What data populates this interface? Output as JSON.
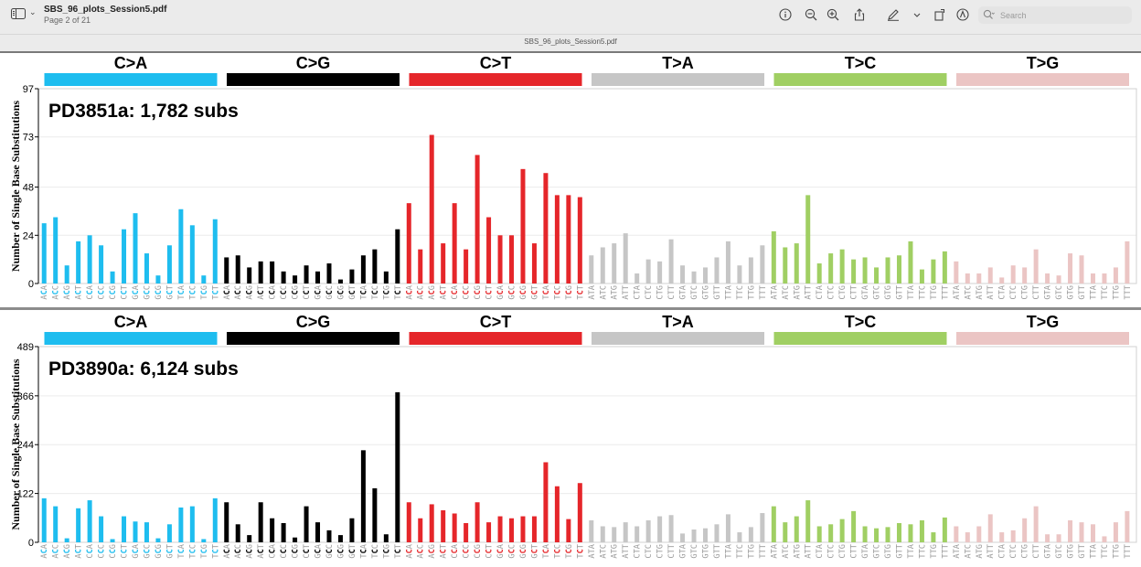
{
  "window": {
    "title": "SBS_96_plots_Session5.pdf",
    "subtitle": "Page 2 of 21",
    "doc_tab": "SBS_96_plots_Session5.pdf"
  },
  "toolbar": {
    "icons": [
      "info-icon",
      "zoom-out-icon",
      "zoom-in-icon",
      "share-icon",
      "markup-pen-icon",
      "chevron-down-icon",
      "rotate-icon",
      "annotate-circle-icon"
    ],
    "search": {
      "placeholder": "Search",
      "value": ""
    }
  },
  "colors": {
    "C>A": "#1ebdef",
    "C>G": "#000000",
    "C>T": "#e5262a",
    "T>A": "#c6c6c6",
    "T>C": "#a0cf63",
    "T>G": "#ebc5c4",
    "label_highlight": {
      "C": "#1ebdef",
      "G": "#000000",
      "T": "#e5262a"
    }
  },
  "mutation_types": [
    "C>A",
    "C>G",
    "C>T",
    "T>A",
    "T>C",
    "T>G"
  ],
  "contexts": {
    "C": [
      "ACA",
      "ACC",
      "ACG",
      "ACT",
      "CCA",
      "CCC",
      "CCG",
      "CCT",
      "GCA",
      "GCC",
      "GCG",
      "GCT",
      "TCA",
      "TCC",
      "TCG",
      "TCT"
    ],
    "T": [
      "ATA",
      "ATC",
      "ATG",
      "ATT",
      "CTA",
      "CTC",
      "CTG",
      "CTT",
      "GTA",
      "GTC",
      "GTG",
      "GTT",
      "TTA",
      "TTC",
      "TTG",
      "TTT"
    ]
  },
  "chart_data": [
    {
      "type": "bar",
      "title": "PD3851a: 1,782 subs",
      "ylabel": "Number of Single Base Substitutions",
      "yticks": [
        0,
        24,
        48,
        73,
        97
      ],
      "ylim": [
        0,
        97
      ],
      "series": {
        "C>A": [
          30,
          33,
          9,
          21,
          24,
          19,
          6,
          27,
          35,
          15,
          4,
          19,
          37,
          29,
          4,
          32
        ],
        "C>G": [
          13,
          14,
          8,
          11,
          11,
          6,
          4,
          9,
          6,
          10,
          2,
          7,
          14,
          17,
          6,
          27
        ],
        "C>T": [
          40,
          17,
          74,
          20,
          40,
          17,
          64,
          33,
          24,
          24,
          57,
          20,
          55,
          44,
          44,
          43
        ],
        "T>A": [
          14,
          18,
          20,
          25,
          5,
          12,
          11,
          22,
          9,
          6,
          8,
          13,
          21,
          9,
          13,
          19
        ],
        "T>C": [
          26,
          18,
          20,
          44,
          10,
          15,
          17,
          12,
          13,
          8,
          13,
          14,
          21,
          7,
          12,
          16
        ],
        "T>G": [
          11,
          5,
          5,
          8,
          3,
          9,
          8,
          17,
          5,
          4,
          15,
          14,
          5,
          5,
          8,
          21
        ]
      }
    },
    {
      "type": "bar",
      "title": "PD3890a: 6,124 subs",
      "ylabel": "Number of Single Base Substitutions",
      "yticks": [
        0,
        122,
        244,
        366,
        489
      ],
      "ylim": [
        0,
        489
      ],
      "series": {
        "C>A": [
          110,
          90,
          10,
          85,
          105,
          65,
          8,
          65,
          52,
          50,
          10,
          45,
          87,
          90,
          8,
          110
        ],
        "C>G": [
          100,
          45,
          18,
          100,
          60,
          48,
          12,
          90,
          50,
          30,
          18,
          60,
          230,
          135,
          20,
          375
        ],
        "C>T": [
          100,
          60,
          95,
          80,
          72,
          48,
          100,
          50,
          65,
          60,
          65,
          65,
          200,
          140,
          58,
          148
        ],
        "T>A": [
          55,
          40,
          38,
          50,
          40,
          55,
          65,
          68,
          22,
          32,
          35,
          45,
          70,
          25,
          38,
          73
        ],
        "T>C": [
          90,
          50,
          65,
          105,
          40,
          45,
          58,
          78,
          40,
          35,
          38,
          48,
          45,
          55,
          25,
          62
        ],
        "T>G": [
          40,
          25,
          40,
          70,
          25,
          30,
          60,
          90,
          20,
          20,
          55,
          50,
          45,
          15,
          50,
          78
        ]
      }
    }
  ]
}
